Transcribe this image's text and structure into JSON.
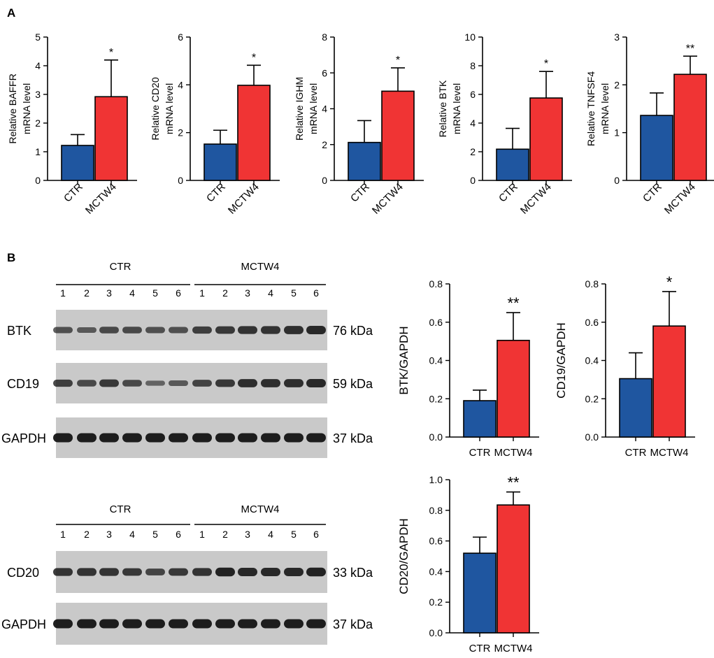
{
  "panels": {
    "a": "A",
    "b": "B"
  },
  "colors": {
    "ctr": "#1f56a0",
    "mctw4": "#f03434",
    "blot_bg": "#c9c9c9",
    "band": "#141414"
  },
  "chart_data": [
    {
      "type": "bar",
      "id": "baffr",
      "ylabel_lines": [
        "Relative BAFFR",
        "mRNA level"
      ],
      "categories": [
        "CTR",
        "MCTW4"
      ],
      "values": [
        1.22,
        2.92
      ],
      "errors": [
        0.38,
        1.28
      ],
      "ylim": [
        0,
        5
      ],
      "yticks": [
        "0",
        "1",
        "2",
        "3",
        "4",
        "5"
      ],
      "significance": [
        "",
        "*"
      ]
    },
    {
      "type": "bar",
      "id": "cd20-mrna",
      "ylabel_lines": [
        "Relative CD20",
        "mRNA level"
      ],
      "categories": [
        "CTR",
        "MCTW4"
      ],
      "values": [
        1.52,
        3.98
      ],
      "errors": [
        0.58,
        0.84
      ],
      "ylim": [
        0,
        6
      ],
      "yticks": [
        "0",
        "2",
        "4",
        "6"
      ],
      "significance": [
        "",
        "*"
      ]
    },
    {
      "type": "bar",
      "id": "ighm",
      "ylabel_lines": [
        "Relative IGHM",
        "mRNA level"
      ],
      "categories": [
        "CTR",
        "MCTW4"
      ],
      "values": [
        2.12,
        4.98
      ],
      "errors": [
        1.22,
        1.3
      ],
      "ylim": [
        0,
        8
      ],
      "yticks": [
        "0",
        "2",
        "4",
        "6",
        "8"
      ],
      "significance": [
        "",
        "*"
      ]
    },
    {
      "type": "bar",
      "id": "btk-mrna",
      "ylabel_lines": [
        "Relative BTK",
        "mRNA level"
      ],
      "categories": [
        "CTR",
        "MCTW4"
      ],
      "values": [
        2.18,
        5.75
      ],
      "errors": [
        1.45,
        1.85
      ],
      "ylim": [
        0,
        10
      ],
      "yticks": [
        "0",
        "2",
        "4",
        "6",
        "8",
        "10"
      ],
      "significance": [
        "",
        "*"
      ]
    },
    {
      "type": "bar",
      "id": "tnfsf4",
      "ylabel_lines": [
        "Relative TNFSF4",
        "mRNA level"
      ],
      "categories": [
        "CTR",
        "MCTW4"
      ],
      "values": [
        1.36,
        2.22
      ],
      "errors": [
        0.47,
        0.38
      ],
      "ylim": [
        0,
        3
      ],
      "yticks": [
        "0",
        "1",
        "2",
        "3"
      ],
      "significance": [
        "",
        "**"
      ]
    },
    {
      "type": "bar",
      "id": "btk-gapdh",
      "ylabel_lines": [
        "BTK/GAPDH"
      ],
      "categories": [
        "CTR",
        "MCTW4"
      ],
      "values": [
        0.19,
        0.505
      ],
      "errors": [
        0.055,
        0.145
      ],
      "ylim": [
        0,
        0.8
      ],
      "yticks": [
        "0.0",
        "0.2",
        "0.4",
        "0.6",
        "0.8"
      ],
      "significance": [
        "",
        "**"
      ]
    },
    {
      "type": "bar",
      "id": "cd19-gapdh",
      "ylabel_lines": [
        "CD19/GAPDH"
      ],
      "categories": [
        "CTR",
        "MCTW4"
      ],
      "values": [
        0.305,
        0.58
      ],
      "errors": [
        0.135,
        0.18
      ],
      "ylim": [
        0,
        0.8
      ],
      "yticks": [
        "0.0",
        "0.2",
        "0.4",
        "0.6",
        "0.8"
      ],
      "significance": [
        "",
        "*"
      ]
    },
    {
      "type": "bar",
      "id": "cd20-gapdh",
      "ylabel_lines": [
        "CD20/GAPDH"
      ],
      "categories": [
        "CTR",
        "MCTW4"
      ],
      "values": [
        0.52,
        0.835
      ],
      "errors": [
        0.105,
        0.085
      ],
      "ylim": [
        0,
        1.0
      ],
      "yticks": [
        "0.0",
        "0.2",
        "0.4",
        "0.6",
        "0.8",
        "1.0"
      ],
      "significance": [
        "",
        "**"
      ]
    }
  ],
  "blots": [
    {
      "id": "blot-group-1",
      "groups": [
        "CTR",
        "MCTW4"
      ],
      "lanes": [
        "1",
        "2",
        "3",
        "4",
        "5",
        "6",
        "1",
        "2",
        "3",
        "4",
        "5",
        "6"
      ],
      "rows": [
        {
          "label": "BTK",
          "kda": "76 kDa",
          "intensity": [
            0.55,
            0.45,
            0.6,
            0.6,
            0.55,
            0.55,
            0.7,
            0.75,
            0.8,
            0.8,
            0.85,
            0.9
          ]
        },
        {
          "label": "CD19",
          "kda": "59 kDa",
          "intensity": [
            0.7,
            0.6,
            0.75,
            0.6,
            0.35,
            0.45,
            0.65,
            0.75,
            0.85,
            0.85,
            0.85,
            0.9
          ]
        },
        {
          "label": "GAPDH",
          "kda": "37 kDa",
          "intensity": [
            1,
            1,
            1,
            1,
            1,
            1,
            1,
            1,
            1,
            1,
            1,
            1
          ]
        }
      ]
    },
    {
      "id": "blot-group-2",
      "groups": [
        "CTR",
        "MCTW4"
      ],
      "lanes": [
        "1",
        "2",
        "3",
        "4",
        "5",
        "6",
        "1",
        "2",
        "3",
        "4",
        "5",
        "6"
      ],
      "rows": [
        {
          "label": "CD20",
          "kda": "33 kDa",
          "intensity": [
            0.8,
            0.8,
            0.8,
            0.75,
            0.65,
            0.75,
            0.8,
            0.95,
            0.9,
            0.9,
            0.9,
            0.95
          ]
        },
        {
          "label": "GAPDH",
          "kda": "37 kDa",
          "intensity": [
            1,
            1,
            1,
            1,
            1,
            1,
            1,
            1,
            1,
            1,
            1,
            1
          ]
        }
      ]
    }
  ]
}
